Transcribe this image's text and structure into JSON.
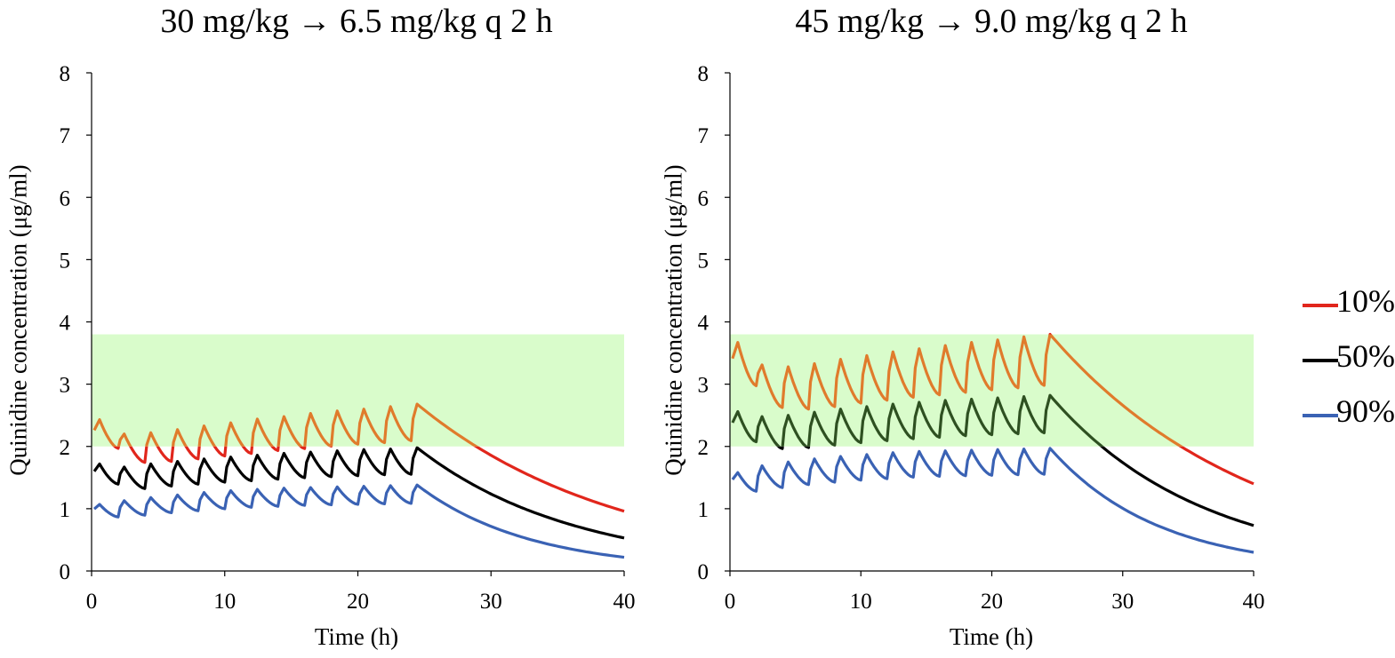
{
  "chart_data": [
    {
      "type": "line",
      "title": "30 mg/kg → 6.5 mg/kg q 2 h",
      "xlabel": "Time (h)",
      "ylabel": "Quinidine concentration (μg/ml)",
      "xlim": [
        0,
        40
      ],
      "ylim": [
        0,
        8
      ],
      "xticks": [
        "0",
        "10",
        "20",
        "30",
        "40"
      ],
      "yticks": [
        "0",
        "1",
        "2",
        "3",
        "4",
        "5",
        "6",
        "7",
        "8"
      ],
      "shaded_band": {
        "ymin": 2.0,
        "ymax": 3.8,
        "xmin": 0,
        "xmax": 40,
        "color": "#d9fccb"
      },
      "series": [
        {
          "name": "10%",
          "loading_peak": 2.43,
          "dose_times": [
            2,
            4,
            6,
            8,
            10,
            12,
            14,
            16,
            18,
            20,
            22,
            24
          ],
          "peaks": [
            2.2,
            2.22,
            2.27,
            2.33,
            2.38,
            2.44,
            2.48,
            2.53,
            2.57,
            2.6,
            2.64,
            2.68
          ],
          "end_value": 0.96
        },
        {
          "name": "50%",
          "loading_peak": 1.72,
          "dose_times": [
            2,
            4,
            6,
            8,
            10,
            12,
            14,
            16,
            18,
            20,
            22,
            24
          ],
          "peaks": [
            1.67,
            1.72,
            1.76,
            1.8,
            1.83,
            1.86,
            1.89,
            1.91,
            1.93,
            1.95,
            1.96,
            1.98
          ],
          "end_value": 0.53
        },
        {
          "name": "90%",
          "loading_peak": 1.07,
          "dose_times": [
            2,
            4,
            6,
            8,
            10,
            12,
            14,
            16,
            18,
            20,
            22,
            24
          ],
          "peaks": [
            1.13,
            1.18,
            1.22,
            1.26,
            1.29,
            1.31,
            1.33,
            1.34,
            1.35,
            1.36,
            1.37,
            1.38
          ],
          "end_value": 0.22
        }
      ]
    },
    {
      "type": "line",
      "title": "45 mg/kg → 9.0 mg/kg q 2 h",
      "xlabel": "Time (h)",
      "ylabel": "Quinidine concentration (μg/ml)",
      "xlim": [
        0,
        40
      ],
      "ylim": [
        0,
        8
      ],
      "xticks": [
        "0",
        "10",
        "20",
        "30",
        "40"
      ],
      "yticks": [
        "0",
        "1",
        "2",
        "3",
        "4",
        "5",
        "6",
        "7",
        "8"
      ],
      "shaded_band": {
        "ymin": 2.0,
        "ymax": 3.8,
        "xmin": 0,
        "xmax": 40,
        "color": "#d9fccb"
      },
      "series": [
        {
          "name": "10%",
          "loading_peak": 3.67,
          "dose_times": [
            2,
            4,
            6,
            8,
            10,
            12,
            14,
            16,
            18,
            20,
            22,
            24
          ],
          "peaks": [
            3.31,
            3.28,
            3.33,
            3.4,
            3.46,
            3.52,
            3.57,
            3.62,
            3.67,
            3.71,
            3.76,
            3.8
          ],
          "end_value": 1.4
        },
        {
          "name": "50%",
          "loading_peak": 2.56,
          "dose_times": [
            2,
            4,
            6,
            8,
            10,
            12,
            14,
            16,
            18,
            20,
            22,
            24
          ],
          "peaks": [
            2.48,
            2.5,
            2.55,
            2.6,
            2.64,
            2.68,
            2.71,
            2.74,
            2.76,
            2.78,
            2.8,
            2.82
          ],
          "end_value": 0.73
        },
        {
          "name": "90%",
          "loading_peak": 1.58,
          "dose_times": [
            2,
            4,
            6,
            8,
            10,
            12,
            14,
            16,
            18,
            20,
            22,
            24
          ],
          "peaks": [
            1.69,
            1.75,
            1.8,
            1.84,
            1.87,
            1.9,
            1.92,
            1.93,
            1.94,
            1.95,
            1.96,
            1.97
          ],
          "end_value": 0.3
        }
      ]
    }
  ],
  "legend": [
    {
      "label": "10%",
      "color": "#e1261c"
    },
    {
      "label": "50%",
      "color": "#000000"
    },
    {
      "label": "90%",
      "color": "#3a62b4"
    }
  ],
  "colors": {
    "band": "#d9fccb",
    "in_band_10": "#e07b2c",
    "in_band_50": "#2e5021",
    "in_band_90": "#3a62b4"
  }
}
